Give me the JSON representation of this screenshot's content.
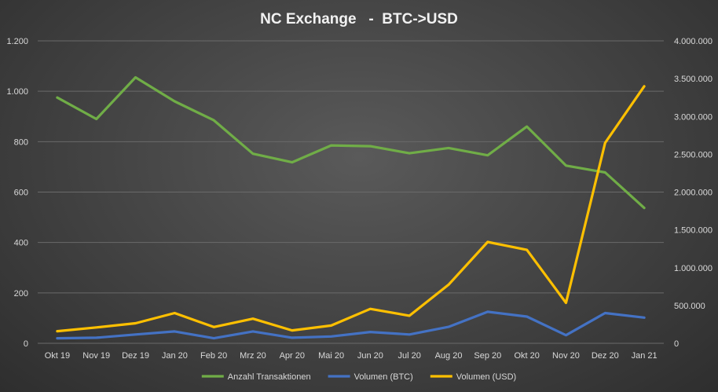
{
  "chart_data": {
    "type": "line",
    "title": "NC Exchange   -  BTC->USD",
    "categories": [
      "Okt 19",
      "Nov 19",
      "Dez 19",
      "Jan 20",
      "Feb 20",
      "Mrz 20",
      "Apr 20",
      "Mai 20",
      "Jun 20",
      "Jul 20",
      "Aug 20",
      "Sep 20",
      "Okt 20",
      "Nov 20",
      "Dez 20",
      "Jan 21"
    ],
    "y_left": {
      "lim": [
        0,
        1200
      ],
      "ticks": [
        0,
        200,
        400,
        600,
        800,
        1000,
        1200
      ],
      "tick_labels": [
        "0",
        "200",
        "400",
        "600",
        "800",
        "1.000",
        "1.200"
      ]
    },
    "y_right": {
      "lim": [
        0,
        4000000
      ],
      "ticks": [
        0,
        500000,
        1000000,
        1500000,
        2000000,
        2500000,
        3000000,
        3500000,
        4000000
      ],
      "tick_labels": [
        "0",
        "500.000",
        "1.000.000",
        "1.500.000",
        "2.000.000",
        "2.500.000",
        "3.000.000",
        "3.500.000",
        "4.000.000"
      ]
    },
    "series": [
      {
        "name": "Anzahl Transaktionen",
        "axis": "left",
        "color": "#70ad47",
        "values": [
          975,
          890,
          1055,
          960,
          885,
          752,
          718,
          785,
          782,
          754,
          775,
          746,
          860,
          705,
          678,
          537
        ]
      },
      {
        "name": "Volumen (BTC)",
        "axis": "left",
        "color": "#4472c4",
        "values": [
          20,
          22,
          35,
          47,
          20,
          47,
          22,
          27,
          45,
          35,
          65,
          125,
          106,
          32,
          120,
          102
        ]
      },
      {
        "name": "Volumen (USD)",
        "axis": "right",
        "color": "#ffc000",
        "values": [
          160000,
          210000,
          265000,
          400000,
          215000,
          325000,
          170000,
          235000,
          455000,
          365000,
          775000,
          1340000,
          1235000,
          535000,
          2650000,
          3400000
        ]
      }
    ],
    "grid": true,
    "legend_position": "bottom"
  }
}
